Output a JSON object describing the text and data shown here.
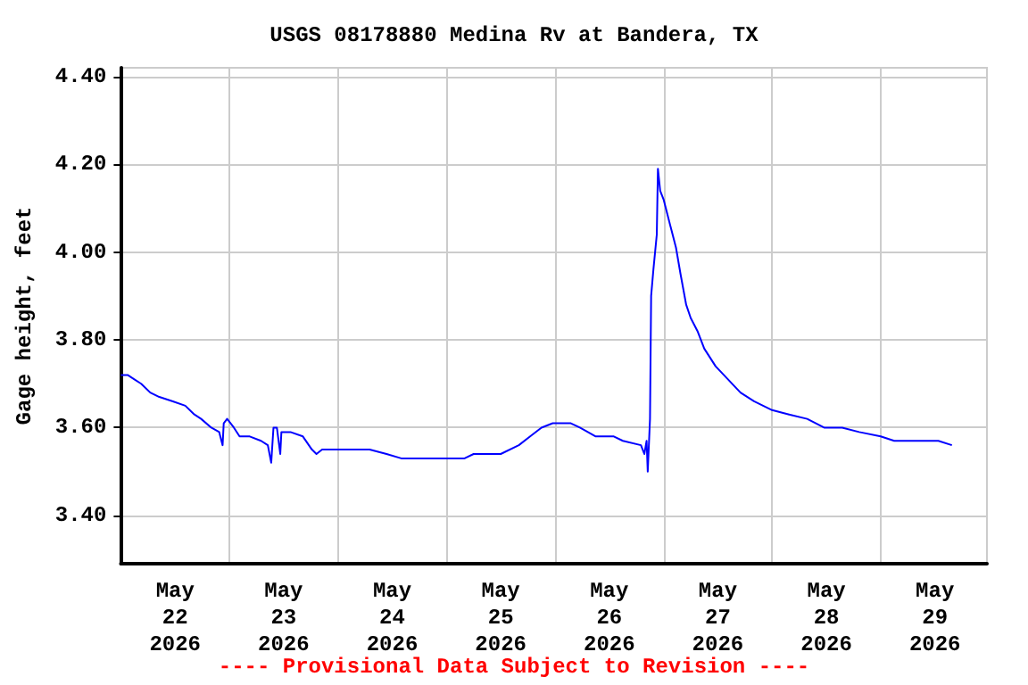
{
  "chart_data": {
    "type": "line",
    "title": "USGS 08178880 Medina Rv at Bandera, TX",
    "ylabel": "Gage height, feet",
    "annotations": [
      "---- Provisional Data Subject to Revision ----"
    ],
    "xlim": [
      "2026-05-22T00:00",
      "2026-05-29T23:30"
    ],
    "xticks": [
      {
        "value": "2026-05-22T00:00",
        "label": null
      },
      {
        "value": "2026-05-22T12:00",
        "label": "May\n22\n2026"
      },
      {
        "value": "2026-05-23T00:00",
        "label": null
      },
      {
        "value": "2026-05-23T12:00",
        "label": "May\n23\n2026"
      },
      {
        "value": "2026-05-24T00:00",
        "label": null
      },
      {
        "value": "2026-05-24T12:00",
        "label": "May\n24\n2026"
      },
      {
        "value": "2026-05-25T00:00",
        "label": null
      },
      {
        "value": "2026-05-25T12:00",
        "label": "May\n25\n2026"
      },
      {
        "value": "2026-05-26T00:00",
        "label": null
      },
      {
        "value": "2026-05-26T12:00",
        "label": "May\n26\n2026"
      },
      {
        "value": "2026-05-27T00:00",
        "label": null
      },
      {
        "value": "2026-05-27T12:00",
        "label": "May\n27\n2026"
      },
      {
        "value": "2026-05-28T00:00",
        "label": null
      },
      {
        "value": "2026-05-28T12:00",
        "label": "May\n28\n2026"
      },
      {
        "value": "2026-05-29T00:00",
        "label": null
      },
      {
        "value": "2026-05-29T12:00",
        "label": "May\n29\n2026"
      }
    ],
    "ylim": [
      3.29,
      4.42
    ],
    "yticks": [
      {
        "value": 3.4,
        "label": "3.40"
      },
      {
        "value": 3.6,
        "label": "3.60"
      },
      {
        "value": 3.8,
        "label": "3.80"
      },
      {
        "value": 4.0,
        "label": "4.00"
      },
      {
        "value": 4.2,
        "label": "4.20"
      },
      {
        "value": 4.4,
        "label": "4.40"
      }
    ],
    "grid": true,
    "marker": "none",
    "line_style": "solid",
    "series": [
      {
        "color": "#0000ff",
        "x": [
          "2026-05-22T00:00",
          "2026-05-22T01:30",
          "2026-05-22T03:00",
          "2026-05-22T04:30",
          "2026-05-22T06:30",
          "2026-05-22T08:30",
          "2026-05-22T11:30",
          "2026-05-22T14:15",
          "2026-05-22T16:15",
          "2026-05-22T17:45",
          "2026-05-22T20:00",
          "2026-05-22T21:45",
          "2026-05-22T22:30",
          "2026-05-22T22:45",
          "2026-05-22T23:30",
          "2026-05-23T01:00",
          "2026-05-23T02:15",
          "2026-05-23T04:30",
          "2026-05-23T07:00",
          "2026-05-23T08:30",
          "2026-05-23T09:15",
          "2026-05-23T09:45",
          "2026-05-23T10:30",
          "2026-05-23T11:15",
          "2026-05-23T11:30",
          "2026-05-23T13:30",
          "2026-05-23T16:15",
          "2026-05-23T18:15",
          "2026-05-23T19:15",
          "2026-05-23T20:30",
          "2026-05-24T01:00",
          "2026-05-24T07:00",
          "2026-05-24T10:45",
          "2026-05-24T14:00",
          "2026-05-24T22:30",
          "2026-05-25T04:00",
          "2026-05-25T06:00",
          "2026-05-25T12:00",
          "2026-05-25T16:00",
          "2026-05-25T18:30",
          "2026-05-25T21:00",
          "2026-05-25T23:30",
          "2026-05-26T03:30",
          "2026-05-26T05:30",
          "2026-05-26T09:00",
          "2026-05-26T13:00",
          "2026-05-26T15:00",
          "2026-05-26T19:00",
          "2026-05-26T19:45",
          "2026-05-26T20:15",
          "2026-05-26T20:30",
          "2026-05-26T21:00",
          "2026-05-26T21:15",
          "2026-05-26T21:45",
          "2026-05-26T22:30",
          "2026-05-26T22:45",
          "2026-05-26T23:15",
          "2026-05-27T00:00",
          "2026-05-27T01:30",
          "2026-05-27T02:45",
          "2026-05-27T03:45",
          "2026-05-27T05:00",
          "2026-05-27T06:00",
          "2026-05-27T07:30",
          "2026-05-27T09:00",
          "2026-05-27T11:30",
          "2026-05-27T14:15",
          "2026-05-27T17:00",
          "2026-05-27T20:00",
          "2026-05-28T00:00",
          "2026-05-28T03:45",
          "2026-05-28T07:45",
          "2026-05-28T11:30",
          "2026-05-28T15:30",
          "2026-05-28T19:15",
          "2026-05-29T00:00",
          "2026-05-29T03:00",
          "2026-05-29T07:00",
          "2026-05-29T12:45",
          "2026-05-29T15:45"
        ],
        "values": [
          3.72,
          3.72,
          3.71,
          3.7,
          3.68,
          3.67,
          3.66,
          3.65,
          3.63,
          3.62,
          3.6,
          3.59,
          3.56,
          3.61,
          3.62,
          3.6,
          3.58,
          3.58,
          3.57,
          3.56,
          3.52,
          3.6,
          3.6,
          3.54,
          3.59,
          3.59,
          3.58,
          3.55,
          3.54,
          3.55,
          3.55,
          3.55,
          3.54,
          3.53,
          3.53,
          3.53,
          3.54,
          3.54,
          3.56,
          3.58,
          3.6,
          3.61,
          3.61,
          3.6,
          3.58,
          3.58,
          3.57,
          3.56,
          3.54,
          3.57,
          3.5,
          3.62,
          3.9,
          3.96,
          4.04,
          4.19,
          4.14,
          4.12,
          4.06,
          4.01,
          3.95,
          3.88,
          3.85,
          3.82,
          3.78,
          3.74,
          3.71,
          3.68,
          3.66,
          3.64,
          3.63,
          3.62,
          3.6,
          3.6,
          3.59,
          3.58,
          3.57,
          3.57,
          3.57,
          3.56
        ]
      }
    ]
  }
}
